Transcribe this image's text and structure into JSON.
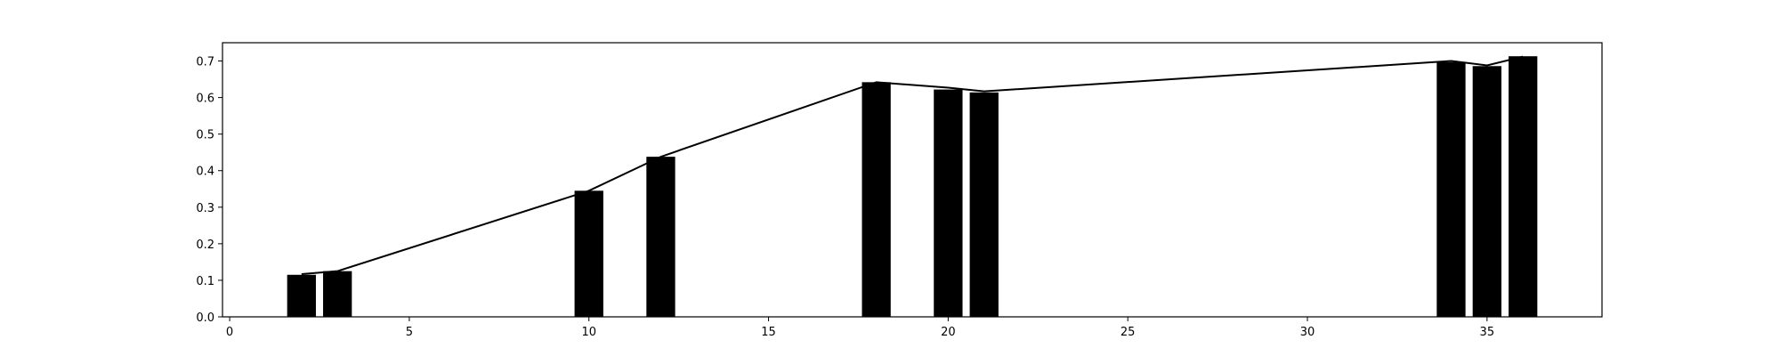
{
  "chart_data": {
    "type": "bar",
    "title": "",
    "xlabel": "",
    "ylabel": "",
    "xlim": [
      -0.2,
      38.2
    ],
    "ylim": [
      0.0,
      0.75
    ],
    "grid": false,
    "x_ticks": [
      0,
      5,
      10,
      15,
      20,
      25,
      30,
      35
    ],
    "y_ticks": [
      0.0,
      0.1,
      0.2,
      0.3,
      0.4,
      0.5,
      0.6,
      0.7
    ],
    "bar_width": 0.8,
    "x": [
      2,
      3,
      10,
      12,
      18,
      20,
      21,
      34,
      35,
      36
    ],
    "values": [
      0.115,
      0.125,
      0.345,
      0.438,
      0.642,
      0.622,
      0.614,
      0.697,
      0.686,
      0.713
    ],
    "line_values": [
      0.117,
      0.125,
      0.345,
      0.438,
      0.642,
      0.627,
      0.617,
      0.7,
      0.688,
      0.712
    ],
    "bar_color": "#000000",
    "line_color": "#000000"
  }
}
